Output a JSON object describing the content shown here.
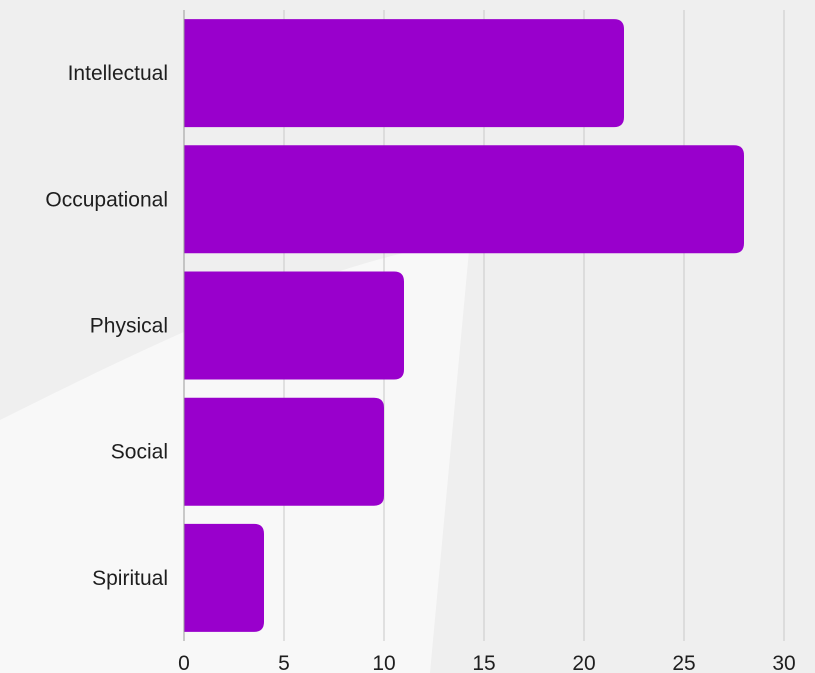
{
  "chart_data": {
    "type": "bar",
    "orientation": "horizontal",
    "title": "",
    "xlabel": "",
    "ylabel": "",
    "categories": [
      "Intellectual",
      "Occupational",
      "Physical",
      "Social",
      "Spiritual"
    ],
    "values": [
      22,
      28,
      11,
      10,
      4
    ],
    "xlim": [
      0,
      30
    ],
    "x_ticks": [
      0,
      5,
      10,
      15,
      20,
      25,
      30
    ],
    "grid": "vertical",
    "bar_color": "#9900cc",
    "background_color": "#efefef"
  }
}
